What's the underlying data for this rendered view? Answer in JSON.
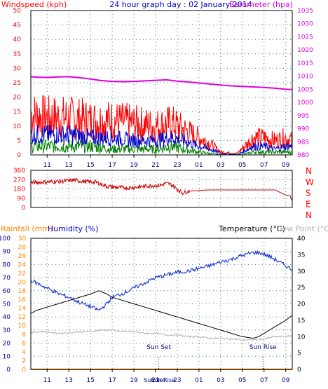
{
  "colors": {
    "background": "#ffffff",
    "plot_background": "#ffffff",
    "frame": "#000000",
    "grid": "#3a7a8a",
    "wind": "#ff0000",
    "gust_blue": "#0000cc",
    "gust_green": "#008000",
    "barometer": "#dd00dd",
    "direction": "#cc0000",
    "humidity": "#0022cc",
    "temperature": "#000000",
    "dewpoint": "#b0b0b0",
    "rain": "#ff8800",
    "axis_red": "#ff0000",
    "axis_magenta": "#dd00dd",
    "axis_blue": "#0000cc",
    "axis_orange": "#ff8800"
  },
  "chart_data": [
    {
      "id": "wind",
      "type": "line",
      "title": "24 hour graph day : 02 January 2014",
      "left_label": "Windspeed (kph)",
      "right_label": "Barometer (hpa)",
      "x_ticks": [
        "11",
        "13",
        "15",
        "17",
        "19",
        "21",
        "23",
        "01",
        "03",
        "05",
        "07",
        "09"
      ],
      "y_left_ticks": [
        "0",
        "5",
        "10",
        "15",
        "20",
        "25",
        "30",
        "35",
        "40",
        "45",
        "50"
      ],
      "y_right_ticks": [
        "980",
        "985",
        "990",
        "995",
        "1000",
        "1005",
        "1010",
        "1015",
        "1020",
        "1025",
        "1030",
        "1035"
      ],
      "y_left_range": [
        0,
        50
      ],
      "y_right_range": [
        980,
        1035
      ],
      "x_hour_range": [
        9.5,
        33.6
      ],
      "grid": true,
      "series": [
        {
          "kind": "wind_gust",
          "axis": "left",
          "x": [
            9.5,
            11,
            13,
            15,
            17,
            19,
            21,
            22.5,
            23.5,
            25,
            26,
            27,
            28.5,
            29.5,
            30,
            31,
            32,
            33,
            33.6
          ],
          "y": [
            14,
            13,
            13,
            12,
            12,
            11,
            10,
            11,
            9,
            6,
            4,
            1,
            0.5,
            4,
            6,
            6,
            5,
            6,
            5
          ]
        },
        {
          "kind": "wind_avg",
          "axis": "left",
          "x": [
            9.5,
            11,
            13,
            15,
            17,
            19,
            21,
            22.5,
            23.5,
            25,
            26,
            27,
            28.5,
            29.5,
            30,
            31,
            32,
            33,
            33.6
          ],
          "y": [
            7,
            7,
            7,
            6,
            6,
            5,
            5,
            6,
            5,
            3,
            2,
            0.5,
            0,
            2,
            3,
            3,
            2,
            3,
            3
          ]
        },
        {
          "kind": "wind_lull",
          "axis": "left",
          "x": [
            9.5,
            11,
            13,
            15,
            17,
            19,
            21,
            22.5,
            23.5,
            25,
            26,
            27,
            28.5,
            29.5,
            30,
            31,
            32,
            33,
            33.6
          ],
          "y": [
            3,
            3,
            3,
            3,
            2,
            2,
            2,
            3,
            2,
            1,
            0.5,
            0,
            0,
            0.5,
            1,
            1,
            1,
            1,
            1
          ]
        },
        {
          "kind": "barometer",
          "axis": "right",
          "x": [
            9.5,
            10,
            11,
            12,
            13,
            14,
            15,
            16,
            17,
            18,
            19,
            20,
            21,
            22,
            23,
            24,
            25,
            26,
            27,
            28,
            29,
            30,
            31,
            32,
            33,
            33.6
          ],
          "y": [
            1009.8,
            1009.6,
            1009.5,
            1009.7,
            1009.8,
            1009.4,
            1008.9,
            1008.3,
            1008.0,
            1007.9,
            1008.0,
            1008.2,
            1008.4,
            1008.6,
            1008.1,
            1007.8,
            1007.4,
            1007.0,
            1006.6,
            1006.3,
            1006.1,
            1005.9,
            1005.7,
            1005.4,
            1005.0,
            1004.9
          ]
        }
      ]
    },
    {
      "id": "direction",
      "type": "line",
      "y_ticks": [
        "0",
        "90",
        "180",
        "270",
        "360"
      ],
      "y_range": [
        0,
        360
      ],
      "compass_labels": [
        "N",
        "W",
        "S",
        "E",
        "N"
      ],
      "x_hour_range": [
        9.5,
        33.6
      ],
      "grid": true,
      "series": [
        {
          "kind": "direction",
          "x": [
            9.5,
            10.5,
            11.5,
            12.5,
            13.5,
            14.5,
            15.5,
            16.5,
            17.5,
            18.5,
            19.5,
            20.5,
            21.5,
            22.0,
            22.5,
            23.0,
            23.5,
            24.0,
            26.0,
            28.0,
            30.0,
            32.0,
            32.5,
            33.0,
            33.4,
            33.6
          ],
          "y": [
            240,
            245,
            250,
            255,
            265,
            250,
            245,
            205,
            195,
            190,
            200,
            210,
            215,
            235,
            220,
            175,
            140,
            158,
            170,
            170,
            170,
            170,
            145,
            120,
            115,
            55
          ]
        }
      ]
    },
    {
      "id": "temperature",
      "type": "line",
      "left_label_1": "Rainfall (mm)",
      "left_label_2": "Humidity (%)",
      "right_label_1": "Temperature (°C)",
      "right_label_2": "Dew Point (°C)",
      "x_ticks": [
        "11",
        "13",
        "15",
        "17",
        "19",
        "21",
        "23",
        "01",
        "03",
        "05",
        "07",
        "09"
      ],
      "y_humidity_ticks": [
        "0",
        "10",
        "20",
        "30",
        "40",
        "50",
        "60",
        "70",
        "80",
        "90",
        "100"
      ],
      "y_rain_ticks": [
        "0",
        "2",
        "4",
        "6",
        "8",
        "10",
        "12",
        "14",
        "16",
        "18",
        "20",
        "22",
        "24",
        "26",
        "28",
        "30"
      ],
      "y_temp_ticks": [
        "0",
        "5",
        "10",
        "15",
        "20",
        "25",
        "30",
        "35",
        "40"
      ],
      "humidity_range": [
        0,
        100
      ],
      "rain_range": [
        0,
        30
      ],
      "temp_range": [
        0,
        40
      ],
      "x_hour_range": [
        9.5,
        33.6
      ],
      "annotations": [
        {
          "text": "Sun Set",
          "hour": 21.3
        },
        {
          "text": "Sun Rise",
          "hour": 30.9
        }
      ],
      "x_extra_labels": [
        "Sun Set",
        "Sun Rise"
      ],
      "grid": true,
      "series": [
        {
          "kind": "humidity",
          "axis": "humidity",
          "x": [
            9.5,
            10.0,
            11.0,
            12.0,
            13.0,
            14.0,
            15.0,
            15.8,
            16.5,
            17.0,
            18.0,
            19.0,
            20.0,
            21.0,
            22.0,
            23.0,
            24.0,
            25.0,
            26.0,
            27.0,
            28.0,
            29.0,
            30.0,
            30.5,
            31.0,
            31.5,
            32.0,
            33.0,
            33.6
          ],
          "y": [
            68,
            66,
            62,
            58,
            55,
            51,
            48,
            45,
            50,
            55,
            58,
            62,
            66,
            70,
            72,
            74,
            75,
            77,
            79,
            82,
            84,
            87,
            89,
            89,
            88,
            86,
            84,
            79,
            76
          ]
        },
        {
          "kind": "temperature",
          "axis": "temp",
          "x": [
            9.5,
            10.0,
            11.0,
            12.0,
            13.0,
            14.0,
            15.0,
            15.8,
            16.5,
            17.0,
            18.0,
            19.0,
            20.0,
            21.0,
            22.0,
            23.0,
            24.0,
            25.0,
            26.0,
            27.0,
            28.0,
            29.0,
            30.0,
            30.5,
            31.0,
            31.5,
            32.0,
            33.0,
            33.6
          ],
          "y": [
            17,
            18,
            19,
            20,
            21,
            22,
            23,
            24,
            23,
            22,
            21,
            20,
            19,
            18,
            17,
            16,
            15,
            14,
            13,
            12,
            11,
            10,
            9.5,
            10,
            11,
            12,
            13,
            15,
            16.5
          ]
        },
        {
          "kind": "dewpoint",
          "axis": "temp",
          "x": [
            9.5,
            10.0,
            11.0,
            12.0,
            13.0,
            14.0,
            15.0,
            16.0,
            17.0,
            18.0,
            19.0,
            20.0,
            21.0,
            22.0,
            23.0,
            24.0,
            25.0,
            26.0,
            27.0,
            28.0,
            29.0,
            30.0,
            31.0,
            32.0,
            33.0,
            33.6
          ],
          "y": [
            11,
            11.5,
            11.5,
            11,
            11.2,
            11.5,
            11.5,
            12,
            12,
            11.5,
            11.5,
            11,
            11,
            10.5,
            10.5,
            10,
            10,
            9.5,
            9.5,
            9.3,
            9,
            9,
            9.3,
            10,
            10,
            10.3
          ]
        },
        {
          "kind": "rain",
          "axis": "rain",
          "x": [
            9.5,
            33.6
          ],
          "y": [
            0,
            0
          ]
        }
      ]
    }
  ]
}
